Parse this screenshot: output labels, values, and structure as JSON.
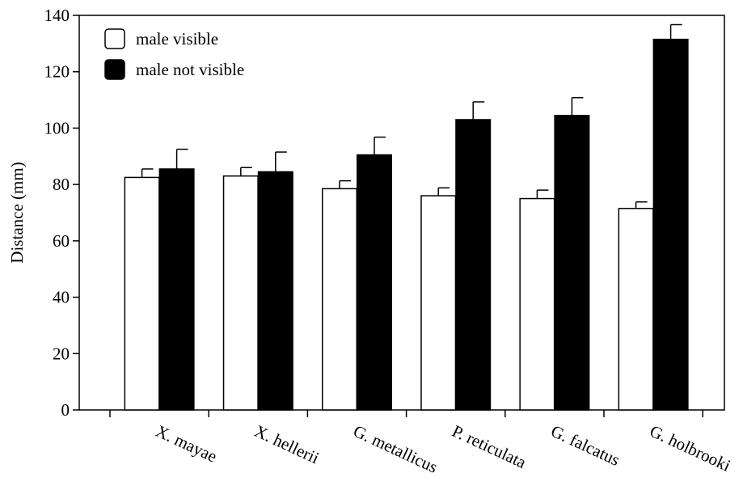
{
  "chart_data": {
    "type": "bar",
    "title": "",
    "xlabel": "",
    "ylabel": "Distance (mm)",
    "ylim": [
      0,
      140
    ],
    "yticks": [
      0,
      20,
      40,
      60,
      80,
      100,
      120,
      140
    ],
    "grid": false,
    "legend_position": "top-left",
    "categories": [
      "X. mayae",
      "X. hellerii",
      "G. metallicus",
      "P. reticulata",
      "G. falcatus",
      "G. holbrooki"
    ],
    "series": [
      {
        "name": "male visible",
        "color": "#ffffff",
        "values": [
          82.5,
          83,
          78.5,
          76,
          75,
          71.5
        ],
        "errors": [
          3,
          3,
          2.8,
          2.8,
          3,
          2.3
        ]
      },
      {
        "name": "male not visible",
        "color": "#000000",
        "values": [
          85.5,
          84.5,
          90.5,
          103,
          104.5,
          131.5
        ],
        "errors": [
          7,
          7,
          6.3,
          6.3,
          6.3,
          5.2
        ]
      }
    ]
  }
}
